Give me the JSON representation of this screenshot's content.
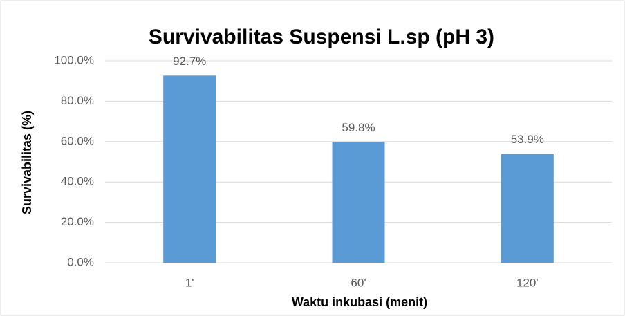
{
  "chart_data": {
    "type": "bar",
    "title": "Survivabilitas Suspensi L.sp (pH 3)",
    "x_label": "Waktu inkubasi (menit)",
    "y_label": "Survivabilitas (%)",
    "categories": [
      "1'",
      "60'",
      "120'"
    ],
    "values": [
      92.7,
      59.8,
      53.9
    ],
    "value_labels": [
      "92.7%",
      "59.8%",
      "53.9%"
    ],
    "color": "#5b9bd5",
    "ylim": [
      0,
      100
    ],
    "yticks": [
      {
        "value": 0,
        "label": "0.0%"
      },
      {
        "value": 20,
        "label": "20.0%"
      },
      {
        "value": 40,
        "label": "40.0%"
      },
      {
        "value": 60,
        "label": "60.0%"
      },
      {
        "value": 80,
        "label": "80.0%"
      },
      {
        "value": 100,
        "label": "100.0%"
      }
    ],
    "grid": true
  }
}
